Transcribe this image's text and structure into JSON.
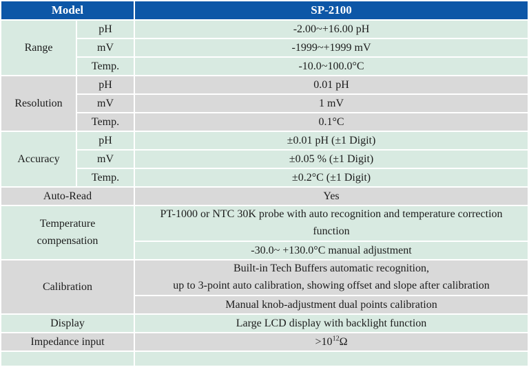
{
  "table": {
    "header": {
      "model": "Model",
      "value": "SP-2100"
    },
    "range": {
      "label": "Range",
      "rows": [
        {
          "param": "pH",
          "value": "-2.00~+16.00 pH"
        },
        {
          "param": "mV",
          "value": "-1999~+1999 mV"
        },
        {
          "param": "Temp.",
          "value": "-10.0~100.0°C"
        }
      ]
    },
    "resolution": {
      "label": "Resolution",
      "rows": [
        {
          "param": "pH",
          "value": "0.01 pH"
        },
        {
          "param": "mV",
          "value": "1 mV"
        },
        {
          "param": "Temp.",
          "value": "0.1°C"
        }
      ]
    },
    "accuracy": {
      "label": "Accuracy",
      "rows": [
        {
          "param": "pH",
          "value": "±0.01 pH (±1 Digit)"
        },
        {
          "param": "mV",
          "value": "±0.05 % (±1 Digit)"
        },
        {
          "param": "Temp.",
          "value": "±0.2°C (±1 Digit)"
        }
      ]
    },
    "auto_read": {
      "label": "Auto-Read",
      "value": "Yes"
    },
    "temperature_compensation": {
      "label": "Temperature\ncompensation",
      "values": [
        "PT-1000 or NTC 30K probe with auto recognition and temperature correction\nfunction",
        "-30.0~ +130.0°C manual adjustment"
      ]
    },
    "calibration": {
      "label": "Calibration",
      "values": [
        "Built-in Tech Buffers automatic recognition,\nup to 3-point auto calibration, showing offset and slope after calibration",
        "Manual knob-adjustment dual points calibration"
      ]
    },
    "display": {
      "label": "Display",
      "value": "Large LCD display with backlight function"
    },
    "impedance_input": {
      "label": "Impedance input",
      "value_base": ">10",
      "value_exponent": "12",
      "value_unit": "Ω"
    }
  },
  "colors": {
    "header_bg": "#0d57a7",
    "header_text": "#ffffff",
    "row_green": "#d8eae1",
    "row_gray": "#d9d9d9",
    "body_text": "#1c1c1c"
  }
}
